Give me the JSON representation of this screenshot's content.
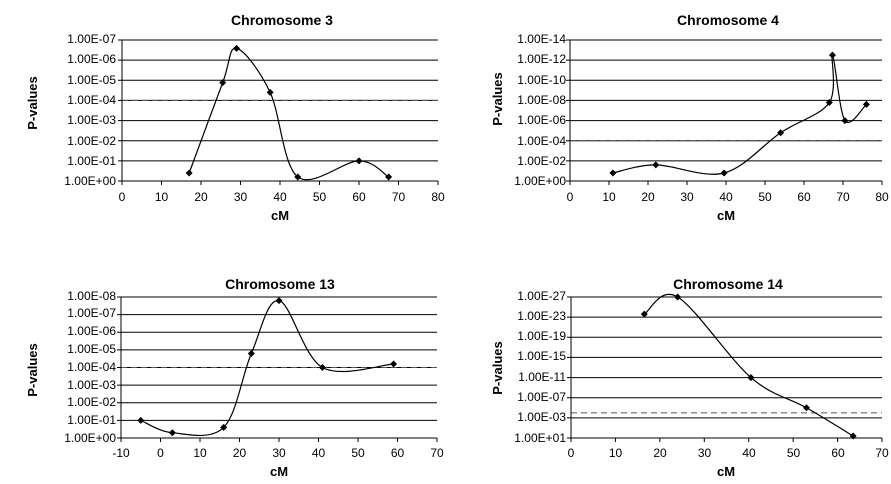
{
  "chart_data": [
    {
      "type": "line",
      "title": "Chromosome 3",
      "xlabel": "cM",
      "ylabel": "P-values",
      "xlim": [
        0,
        80
      ],
      "x_ticks": [
        0,
        10,
        20,
        30,
        40,
        50,
        60,
        70,
        80
      ],
      "y_scale": "log-inverted",
      "y_tick_labels": [
        "1.00E+00",
        "1.00E-01",
        "1.00E-02",
        "1.00E-03",
        "1.00E-04",
        "1.00E-05",
        "1.00E-06",
        "1.00E-07"
      ],
      "y_tick_exponents": [
        0,
        1,
        2,
        3,
        4,
        5,
        6,
        7
      ],
      "threshold_exponent": 4,
      "threshold_style": "dashed",
      "series": [
        {
          "x": [
            17,
            25.5,
            29,
            37.5,
            44.5,
            60,
            67.5
          ],
          "y": [
            "4.0E-01",
            "1.3E-05",
            "2.6E-07",
            "4.0E-05",
            "6.3E-01",
            "1.0E-01",
            "6.3E-01"
          ]
        }
      ]
    },
    {
      "type": "line",
      "title": "Chromosome 4",
      "xlabel": "cM",
      "ylabel": "P-values",
      "xlim": [
        0,
        80
      ],
      "x_ticks": [
        0,
        10,
        20,
        30,
        40,
        50,
        60,
        70,
        80
      ],
      "y_scale": "log-inverted",
      "y_tick_labels": [
        "1.00E+00",
        "1.00E-02",
        "1.00E-04",
        "1.00E-06",
        "1.00E-08",
        "1.00E-10",
        "1.00E-12",
        "1.00E-14"
      ],
      "y_tick_exponents": [
        0,
        2,
        4,
        6,
        8,
        10,
        12,
        14
      ],
      "threshold_exponent": 4,
      "threshold_style": "dashed",
      "series": [
        {
          "x": [
            11,
            22,
            39.5,
            54,
            66.5,
            67.3,
            70.5,
            76
          ],
          "y": [
            "1.6E-01",
            "2.5E-02",
            "1.6E-01",
            "1.6E-05",
            "1.6E-08",
            "3.2E-13",
            "1.0E-06",
            "2.5E-08"
          ]
        }
      ]
    },
    {
      "type": "line",
      "title": "Chromosome 13",
      "xlabel": "cM",
      "ylabel": "P-values",
      "xlim": [
        -10,
        70
      ],
      "x_ticks": [
        -10,
        0,
        10,
        20,
        30,
        40,
        50,
        60,
        70
      ],
      "y_scale": "log-inverted",
      "y_tick_labels": [
        "1.00E+00",
        "1.00E-01",
        "1.00E-02",
        "1.00E-03",
        "1.00E-04",
        "1.00E-05",
        "1.00E-06",
        "1.00E-07",
        "1.00E-08"
      ],
      "y_tick_exponents": [
        0,
        1,
        2,
        3,
        4,
        5,
        6,
        7,
        8
      ],
      "threshold_exponent": 4,
      "threshold_style": "dashed",
      "series": [
        {
          "x": [
            -5,
            3,
            16,
            23,
            30,
            41,
            59
          ],
          "y": [
            "1.0E-01",
            "5.0E-01",
            "2.5E-01",
            "1.6E-05",
            "1.6E-08",
            "1.0E-04",
            "6.3E-05"
          ]
        }
      ]
    },
    {
      "type": "line",
      "title": "Chromosome 14",
      "xlabel": "cM",
      "ylabel": "P-values",
      "xlim": [
        0,
        70
      ],
      "x_ticks": [
        0,
        10,
        20,
        30,
        40,
        50,
        60,
        70
      ],
      "y_scale": "log-inverted",
      "y_tick_labels": [
        "1.00E+01",
        "1.00E-03",
        "1.00E-07",
        "1.00E-11",
        "1.00E-15",
        "1.00E-19",
        "1.00E-23",
        "1.00E-27"
      ],
      "y_tick_exponents": [
        -1,
        3,
        7,
        11,
        15,
        19,
        23,
        27
      ],
      "threshold_exponent": 4,
      "threshold_style": "dashed",
      "series": [
        {
          "x": [
            16.5,
            24,
            40.5,
            53,
            63.5
          ],
          "y": [
            "2.5E-24",
            "1.0E-27",
            "1.0E-11",
            "1.0E-05",
            "4.0E+00"
          ]
        }
      ]
    }
  ]
}
